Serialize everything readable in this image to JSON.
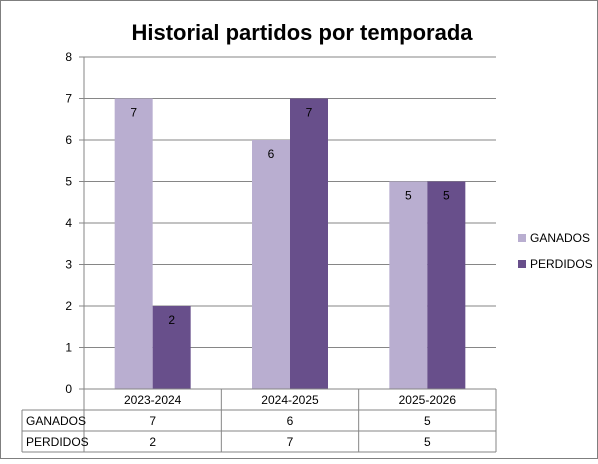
{
  "chart_data": {
    "type": "bar",
    "title": "Historial partidos por temporada",
    "categories": [
      "2023-2024",
      "2024-2025",
      "2025-2026"
    ],
    "series": [
      {
        "name": "GANADOS",
        "values": [
          7,
          6,
          5
        ],
        "color": "#B9AED0"
      },
      {
        "name": "PERDIDOS",
        "values": [
          2,
          7,
          5
        ],
        "color": "#684F8B"
      }
    ],
    "ylim": [
      0,
      8
    ],
    "yticks": [
      "0",
      "1",
      "2",
      "3",
      "4",
      "5",
      "6",
      "7",
      "8"
    ],
    "grid": true,
    "legend": "right",
    "data_table": true
  }
}
